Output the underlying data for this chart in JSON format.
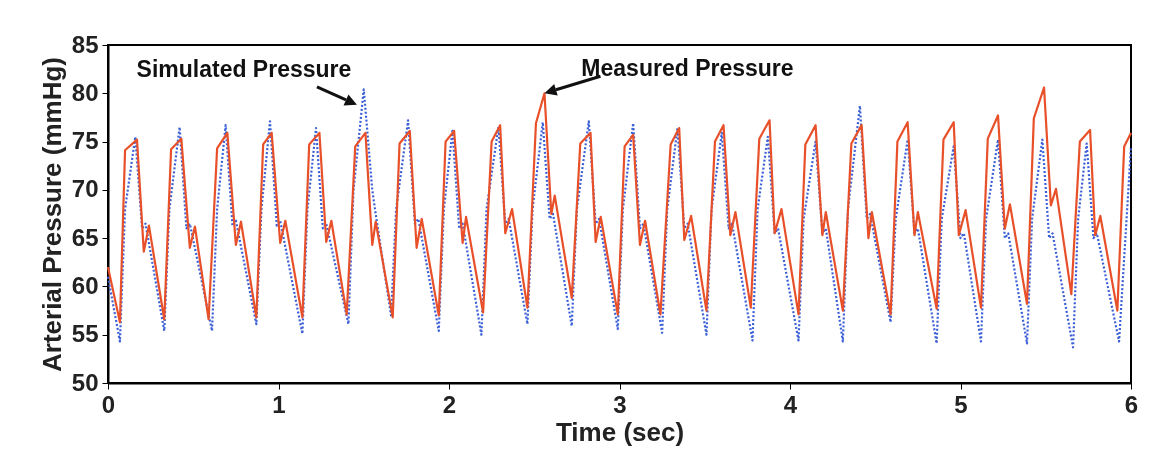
{
  "chart_data": {
    "type": "line",
    "xlabel": "Time (sec)",
    "ylabel": "Arterial Pressure (mmHg)",
    "xlim": [
      0,
      6
    ],
    "xticks": [
      0,
      1,
      2,
      3,
      4,
      5,
      6
    ],
    "ylim": [
      50,
      85
    ],
    "yticks": [
      50,
      55,
      60,
      65,
      70,
      75,
      80,
      85
    ],
    "grid": false,
    "marker": "none",
    "series": [
      {
        "color": "#3a5fd6",
        "line_style": "dotted",
        "x": [
          0,
          0.07,
          0.1,
          0.16,
          0.2,
          0.22,
          0.33,
          0.36,
          0.42,
          0.46,
          0.48,
          0.61,
          0.64,
          0.69,
          0.73,
          0.75,
          0.87,
          0.9,
          0.95,
          0.99,
          1.01,
          1.14,
          1.17,
          1.22,
          1.26,
          1.28,
          1.41,
          1.44,
          1.5,
          1.55,
          1.57,
          1.66,
          1.69,
          1.76,
          1.8,
          1.82,
          1.94,
          1.97,
          2.02,
          2.06,
          2.08,
          2.19,
          2.22,
          2.29,
          2.33,
          2.35,
          2.46,
          2.49,
          2.55,
          2.59,
          2.61,
          2.72,
          2.75,
          2.82,
          2.86,
          2.88,
          2.99,
          3.02,
          3.08,
          3.12,
          3.14,
          3.25,
          3.28,
          3.34,
          3.38,
          3.4,
          3.51,
          3.54,
          3.6,
          3.64,
          3.66,
          3.78,
          3.81,
          3.87,
          3.91,
          3.93,
          4.05,
          4.08,
          4.15,
          4.19,
          4.21,
          4.31,
          4.34,
          4.41,
          4.45,
          4.47,
          4.59,
          4.62,
          4.69,
          4.73,
          4.75,
          4.86,
          4.89,
          4.96,
          5.0,
          5.02,
          5.12,
          5.15,
          5.22,
          5.26,
          5.28,
          5.39,
          5.42,
          5.48,
          5.52,
          5.54,
          5.66,
          5.69,
          5.74,
          5.78,
          5.8,
          5.93,
          6.0
        ],
        "values": [
          61,
          54.3,
          68,
          75.5,
          66,
          66.5,
          55.4,
          68,
          76.5,
          66,
          66.5,
          55.4,
          68,
          76.7,
          66.3,
          66.8,
          56.1,
          68,
          77.1,
          66.3,
          66.8,
          55.1,
          68,
          76.4,
          66,
          66.5,
          56.1,
          70,
          80.4,
          70,
          67.5,
          57.0,
          68,
          77.2,
          66.5,
          67,
          55.4,
          68,
          76.1,
          66,
          66.5,
          55.0,
          68,
          76.5,
          66.5,
          67,
          56.1,
          68,
          77.0,
          67,
          67.5,
          55.9,
          68,
          77.1,
          66.5,
          67,
          55.6,
          68,
          76.9,
          66,
          66.5,
          55.2,
          68,
          76.4,
          66,
          66.5,
          55.0,
          68,
          75.9,
          66,
          66.5,
          54.4,
          68,
          75.5,
          65.5,
          66,
          54.4,
          67,
          75.0,
          65.5,
          66,
          54.3,
          68,
          78.7,
          67,
          67.5,
          56.3,
          67,
          75.2,
          65.5,
          66,
          54.1,
          67,
          74.5,
          65,
          65.5,
          54.3,
          67,
          75.2,
          65,
          65.5,
          54.1,
          67,
          75.2,
          65,
          65.5,
          53.7,
          67,
          74.8,
          65,
          65.5,
          54.3,
          74.5
        ]
      },
      {
        "color": "#e8502a",
        "line_style": "solid",
        "x": [
          0,
          0.07,
          0.1,
          0.17,
          0.21,
          0.24,
          0.33,
          0.37,
          0.43,
          0.48,
          0.51,
          0.59,
          0.64,
          0.7,
          0.75,
          0.78,
          0.87,
          0.91,
          0.96,
          1.01,
          1.04,
          1.14,
          1.18,
          1.24,
          1.28,
          1.31,
          1.4,
          1.45,
          1.51,
          1.55,
          1.57,
          1.67,
          1.71,
          1.77,
          1.81,
          1.84,
          1.94,
          1.98,
          2.03,
          2.08,
          2.1,
          2.2,
          2.25,
          2.3,
          2.33,
          2.37,
          2.46,
          2.51,
          2.56,
          2.6,
          2.62,
          2.72,
          2.77,
          2.83,
          2.86,
          2.89,
          2.99,
          3.03,
          3.08,
          3.12,
          3.15,
          3.24,
          3.3,
          3.35,
          3.38,
          3.42,
          3.51,
          3.56,
          3.61,
          3.65,
          3.68,
          3.77,
          3.82,
          3.88,
          3.91,
          3.95,
          4.05,
          4.09,
          4.15,
          4.19,
          4.21,
          4.31,
          4.36,
          4.42,
          4.46,
          4.48,
          4.59,
          4.63,
          4.69,
          4.73,
          4.75,
          4.86,
          4.9,
          4.96,
          4.99,
          5.03,
          5.12,
          5.16,
          5.22,
          5.26,
          5.29,
          5.39,
          5.43,
          5.49,
          5.53,
          5.56,
          5.65,
          5.7,
          5.76,
          5.79,
          5.82,
          5.92,
          5.96,
          6.0
        ],
        "values": [
          62,
          56.3,
          74.1,
          75.2,
          63.6,
          66.3,
          56.6,
          74.2,
          75.3,
          64.0,
          66.2,
          56.6,
          74.3,
          75.9,
          64.3,
          66.7,
          56.8,
          74.7,
          75.9,
          64.5,
          66.8,
          56.8,
          74.7,
          75.9,
          64.6,
          66.8,
          57.1,
          74.5,
          75.9,
          64.3,
          66.7,
          56.8,
          74.8,
          76.1,
          64.0,
          67.0,
          57.0,
          75.0,
          76.1,
          64.5,
          67.2,
          57.3,
          75.0,
          76.7,
          65.5,
          68.0,
          57.8,
          76.9,
          80.0,
          67.5,
          69.4,
          58.8,
          74.8,
          75.9,
          64.6,
          67.2,
          57.1,
          74.5,
          75.7,
          64.3,
          66.8,
          57.1,
          74.7,
          76.4,
          64.8,
          67.3,
          57.5,
          75.0,
          76.7,
          65.3,
          67.7,
          57.8,
          75.3,
          77.2,
          65.5,
          68.0,
          57.1,
          74.7,
          76.7,
          65.3,
          67.7,
          57.5,
          74.8,
          76.7,
          65.0,
          67.7,
          57.1,
          75.0,
          77.0,
          65.3,
          67.7,
          57.7,
          75.2,
          77.0,
          65.3,
          67.9,
          57.8,
          75.3,
          77.7,
          66.0,
          68.5,
          58.2,
          77.4,
          80.6,
          68.4,
          70.1,
          59.2,
          75.0,
          76.2,
          65.3,
          67.3,
          57.5,
          74.5,
          75.9
        ]
      }
    ],
    "annotations": [
      {
        "text": "Simulated Pressure",
        "x": 1.46,
        "y": 78.8
      },
      {
        "text": "Measured Pressure",
        "x": 2.56,
        "y": 80
      }
    ]
  }
}
